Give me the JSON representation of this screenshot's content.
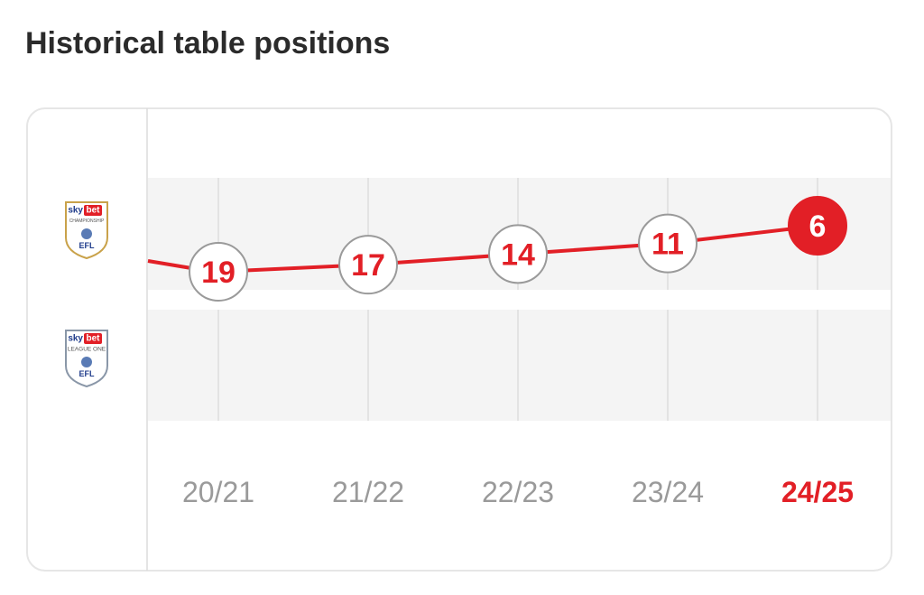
{
  "title": "Historical table positions",
  "chart_data": {
    "type": "line",
    "categories": [
      "20/21",
      "21/22",
      "22/23",
      "23/24",
      "24/25"
    ],
    "values": [
      19,
      17,
      14,
      11,
      6
    ],
    "color": "#e21f26",
    "ylim": [
      24,
      1
    ],
    "current_index": 4,
    "leagues": [
      {
        "sky": "sky",
        "bet": "bet",
        "name": "CHAMPIONSHIP",
        "org": "EFL",
        "color": "#c9a24a"
      },
      {
        "sky": "sky",
        "bet": "bet",
        "name": "LEAGUE ONE",
        "org": "EFL",
        "color": "#8a97a8"
      }
    ]
  }
}
